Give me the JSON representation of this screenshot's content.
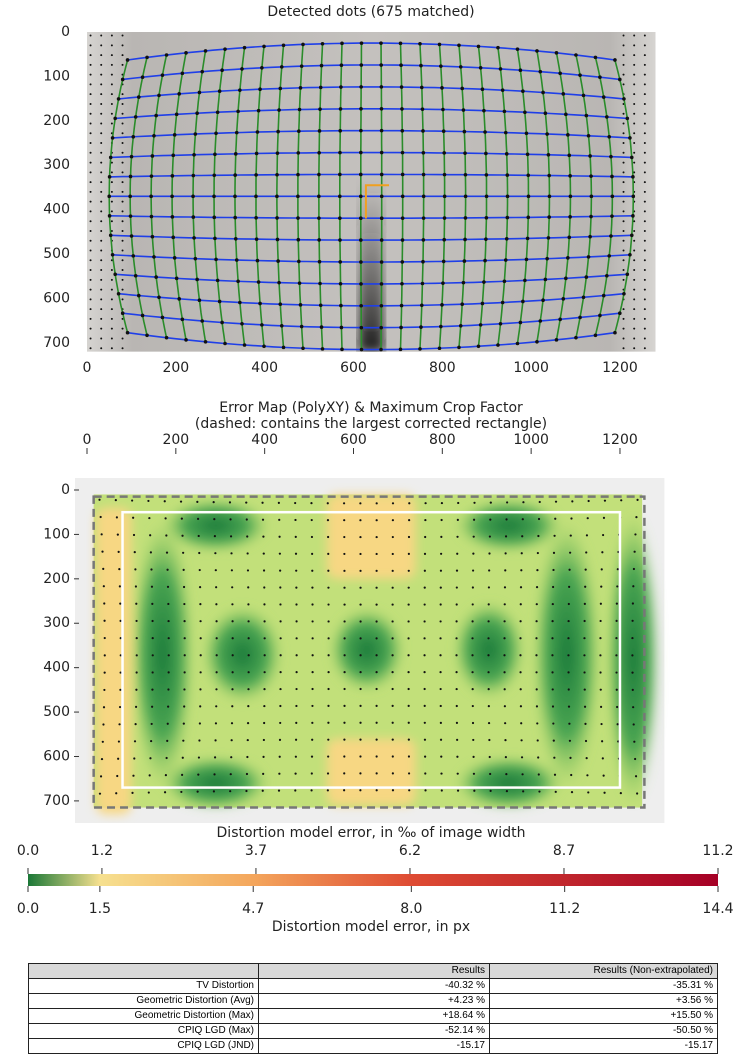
{
  "chart_data": [
    {
      "type": "image",
      "title": "Detected dots (675 matched)",
      "xlim": [
        0,
        1280
      ],
      "ylim": [
        0,
        720
      ],
      "xticks": [
        0,
        200,
        400,
        600,
        800,
        1000,
        1200
      ],
      "yticks": [
        0,
        100,
        200,
        300,
        400,
        500,
        600,
        700
      ]
    },
    {
      "type": "heatmap",
      "title": "Error Map (PolyXY) & Maximum Crop Factor",
      "subtitle": "(dashed: contains the largest corrected rectangle)",
      "xlim": [
        0,
        1280
      ],
      "ylim": [
        0,
        720
      ],
      "xticks": [
        0,
        200,
        400,
        600,
        800,
        1000,
        1200
      ],
      "yticks": [
        0,
        100,
        200,
        300,
        400,
        500,
        600,
        700
      ]
    },
    {
      "type": "colorbar",
      "x2label": "Distortion model error, in ‰ of image width",
      "x2lim": [
        0,
        11.2
      ],
      "x2ticks": [
        {
          "value": 0,
          "label": "0.0"
        },
        1.2,
        3.7,
        6.2,
        8.7,
        11.2
      ],
      "xlabel": "Distortion model error, in px",
      "xlim": [
        0,
        14.4
      ],
      "xticks": [
        {
          "value": 0,
          "label": "0.0"
        },
        1.5,
        4.7,
        {
          "value": 8,
          "label": "8.0"
        },
        11.2,
        14.4
      ],
      "colors": [
        "#1b7837",
        "#f6e08f",
        "#f4a65c",
        "#de4b33",
        "#c0262c",
        "#a50026"
      ]
    }
  ],
  "table": {
    "columns": [
      "Results",
      "Results (Non-extrapolated)"
    ],
    "rows": [
      [
        "TV Distortion",
        "-40.32 %",
        "-35.31 %"
      ],
      [
        "Geometric Distortion (Avg)",
        "+4.23 %",
        "+3.56 %"
      ],
      [
        "Geometric Distortion (Max)",
        "+18.64 %",
        "+15.50 %"
      ],
      [
        "CPIQ LGD (Max)",
        "-52.14 %",
        "-50.50 %"
      ],
      [
        "CPIQ LGD (JND)",
        "-15.17",
        "-15.17"
      ]
    ]
  }
}
